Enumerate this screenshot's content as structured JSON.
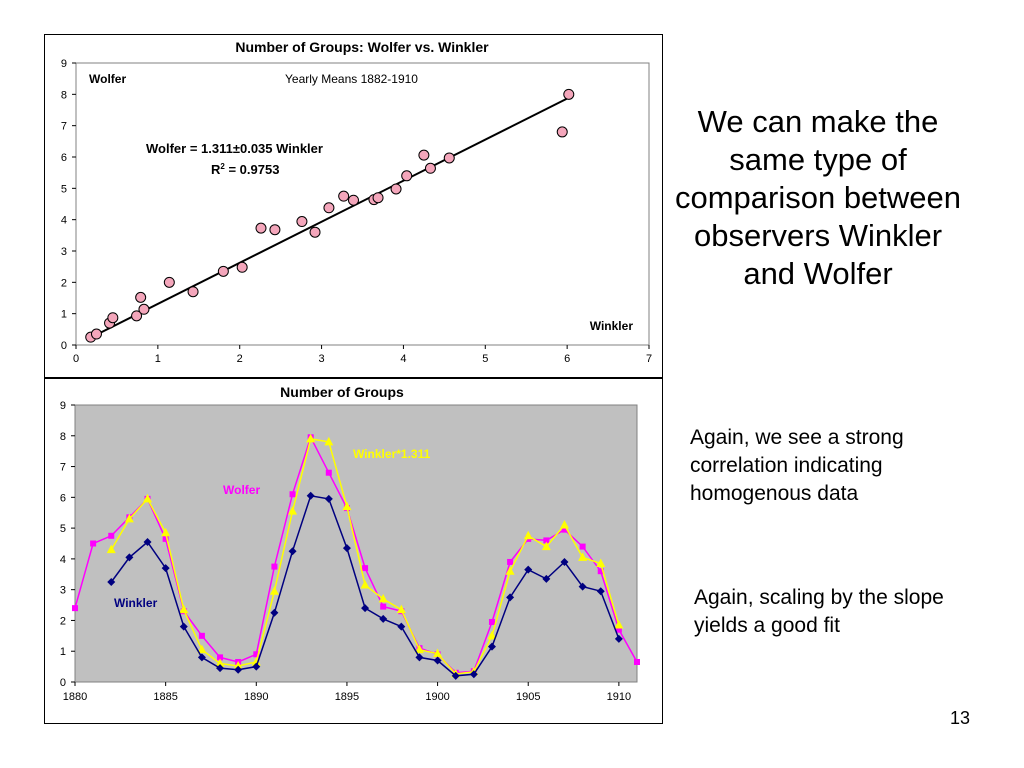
{
  "slide": {
    "heading": "We can make the same type of comparison between observers Winkler and Wolfer",
    "note1": "Again, we see a strong correlation indicating homogenous data",
    "note2": "Again, scaling by the slope yields a good fit",
    "page_number": "13"
  },
  "chart_data": [
    {
      "type": "scatter",
      "title": "Number of Groups: Wolfer vs. Winkler",
      "subtitle": "Yearly Means 1882-1910",
      "xlabel": "Winkler",
      "ylabel": "Wolfer",
      "xlim": [
        0,
        7
      ],
      "ylim": [
        0,
        9
      ],
      "xticks": [
        "0",
        "1",
        "2",
        "3",
        "4",
        "5",
        "6",
        "7"
      ],
      "yticks": [
        "0",
        "1",
        "2",
        "3",
        "4",
        "5",
        "6",
        "7",
        "8",
        "9"
      ],
      "grid": false,
      "marker_color": "#f4a6bb",
      "points": [
        [
          0.18,
          0.25
        ],
        [
          0.25,
          0.35
        ],
        [
          0.41,
          0.7
        ],
        [
          0.45,
          0.87
        ],
        [
          0.74,
          0.93
        ],
        [
          0.79,
          1.52
        ],
        [
          0.83,
          1.14
        ],
        [
          1.14,
          2.0
        ],
        [
          1.43,
          1.7
        ],
        [
          1.8,
          2.35
        ],
        [
          2.03,
          2.48
        ],
        [
          2.26,
          3.73
        ],
        [
          2.43,
          3.68
        ],
        [
          2.76,
          3.94
        ],
        [
          2.92,
          3.6
        ],
        [
          3.09,
          4.38
        ],
        [
          3.27,
          4.75
        ],
        [
          3.39,
          4.62
        ],
        [
          3.64,
          4.64
        ],
        [
          3.69,
          4.7
        ],
        [
          3.91,
          4.98
        ],
        [
          4.04,
          5.4
        ],
        [
          4.25,
          6.06
        ],
        [
          4.33,
          5.64
        ],
        [
          4.56,
          5.97
        ],
        [
          5.94,
          6.8
        ],
        [
          6.02,
          8.0
        ]
      ],
      "fit": {
        "equation_label": "Wolfer = 1.311±0.035 Winkler",
        "r2_label_main": "R",
        "r2_label_sup": "2",
        "r2_label_rest": " = 0.9753",
        "slope": 1.311,
        "x_range": [
          0.2,
          6.05
        ]
      }
    },
    {
      "type": "line",
      "title": "Number of Groups",
      "xlim": [
        1880,
        1911
      ],
      "ylim": [
        0,
        9
      ],
      "xticks": [
        "1880",
        "1885",
        "1890",
        "1895",
        "1900",
        "1905",
        "1910"
      ],
      "yticks": [
        "0",
        "1",
        "2",
        "3",
        "4",
        "5",
        "6",
        "7",
        "8",
        "9"
      ],
      "plot_background": "#c0c0c0",
      "series": [
        {
          "name": "Wolfer",
          "color": "#ff00ff",
          "marker": "square",
          "x": [
            1880,
            1881,
            1882,
            1883,
            1884,
            1885,
            1886,
            1887,
            1888,
            1889,
            1890,
            1891,
            1892,
            1893,
            1894,
            1895,
            1896,
            1897,
            1898,
            1899,
            1900,
            1901,
            1902,
            1903,
            1904,
            1905,
            1906,
            1907,
            1908,
            1909,
            1910,
            1911
          ],
          "values": [
            2.4,
            4.5,
            4.75,
            5.35,
            5.95,
            4.65,
            2.3,
            1.5,
            0.8,
            0.65,
            0.9,
            3.75,
            6.1,
            7.95,
            6.8,
            5.65,
            3.7,
            2.45,
            2.3,
            1.1,
            0.9,
            0.3,
            0.35,
            1.95,
            3.9,
            4.65,
            4.6,
            4.95,
            4.4,
            3.6,
            1.7,
            0.65
          ]
        },
        {
          "name": "Winkler",
          "color": "#000080",
          "marker": "diamond",
          "x": [
            1882,
            1883,
            1884,
            1885,
            1886,
            1887,
            1888,
            1889,
            1890,
            1891,
            1892,
            1893,
            1894,
            1895,
            1896,
            1897,
            1898,
            1899,
            1900,
            1901,
            1902,
            1903,
            1904,
            1905,
            1906,
            1907,
            1908,
            1909,
            1910
          ],
          "values": [
            3.25,
            4.05,
            4.55,
            3.7,
            1.8,
            0.8,
            0.45,
            0.4,
            0.5,
            2.25,
            4.25,
            6.05,
            5.95,
            4.35,
            2.4,
            2.05,
            1.8,
            0.8,
            0.7,
            0.2,
            0.25,
            1.15,
            2.75,
            3.65,
            3.35,
            3.9,
            3.1,
            2.95,
            1.4
          ]
        },
        {
          "name": "Winkler*1.311",
          "color": "#ffff00",
          "marker": "triangle",
          "x": [
            1882,
            1883,
            1884,
            1885,
            1886,
            1887,
            1888,
            1889,
            1890,
            1891,
            1892,
            1893,
            1894,
            1895,
            1896,
            1897,
            1898,
            1899,
            1900,
            1901,
            1902,
            1903,
            1904,
            1905,
            1906,
            1907,
            1908,
            1909,
            1910
          ],
          "values": [
            4.3,
            5.3,
            5.95,
            4.85,
            2.35,
            1.05,
            0.6,
            0.52,
            0.65,
            2.95,
            5.55,
            7.9,
            7.8,
            5.7,
            3.15,
            2.7,
            2.35,
            1.05,
            0.92,
            0.26,
            0.33,
            1.5,
            3.6,
            4.75,
            4.4,
            5.1,
            4.05,
            3.85,
            1.85
          ]
        }
      ]
    }
  ]
}
